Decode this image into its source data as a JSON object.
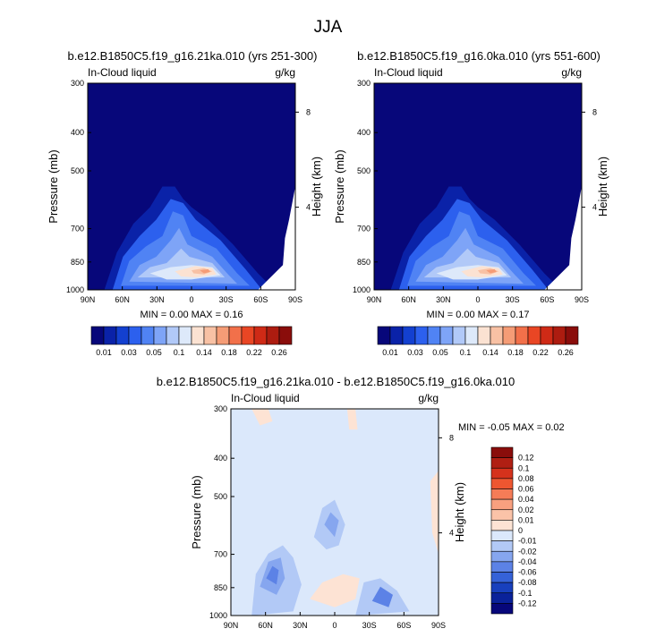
{
  "title": "JJA",
  "chart_data": [
    {
      "type": "heatmap",
      "title": "b.e12.B1850C5.f19_g16.21ka.010 (yrs 251-300)",
      "left_label": "In-Cloud liquid",
      "right_label": "g/kg",
      "ylabel": "Pressure (mb)",
      "ylabel_right": "Height (km)",
      "x_ticks": [
        "90N",
        "60N",
        "30N",
        "0",
        "30S",
        "60S",
        "90S"
      ],
      "y_ticks": [
        "300",
        "400",
        "500",
        "700",
        "850",
        "1000"
      ],
      "y_right_ticks": [
        "8",
        "4"
      ],
      "stats": {
        "min_label": "MIN =",
        "min": "0.00",
        "max_label": "MAX =",
        "max": "0.16"
      },
      "peak": {
        "lat": -18,
        "pressure": 860,
        "value": 0.16
      }
    },
    {
      "type": "heatmap",
      "title": "b.e12.B1850C5.f19_g16.0ka.010 (yrs 551-600)",
      "left_label": "In-Cloud liquid",
      "right_label": "g/kg",
      "ylabel": "Pressure (mb)",
      "ylabel_right": "Height (km)",
      "x_ticks": [
        "90N",
        "60N",
        "30N",
        "0",
        "30S",
        "60S",
        "90S"
      ],
      "y_ticks": [
        "300",
        "400",
        "500",
        "700",
        "850",
        "1000"
      ],
      "y_right_ticks": [
        "8",
        "4"
      ],
      "stats": {
        "min_label": "MIN =",
        "min": "0.00",
        "max_label": "MAX =",
        "max": "0.17"
      },
      "peak": {
        "lat": -18,
        "pressure": 855,
        "value": 0.17
      }
    },
    {
      "type": "heatmap",
      "title": "b.e12.B1850C5.f19_g16.21ka.010 - b.e12.B1850C5.f19_g16.0ka.010",
      "left_label": "In-Cloud liquid",
      "right_label": "g/kg",
      "ylabel": "Pressure (mb)",
      "ylabel_right": "Height (km)",
      "x_ticks": [
        "90N",
        "60N",
        "30N",
        "0",
        "30S",
        "60S",
        "90S"
      ],
      "y_ticks": [
        "300",
        "400",
        "500",
        "700",
        "850",
        "1000"
      ],
      "y_right_ticks": [
        "8",
        "4"
      ],
      "stats": {
        "min_label": "MIN =",
        "min": "-0.05",
        "max_label": "MAX =",
        "max": "0.02"
      }
    }
  ],
  "colorbar_top": {
    "labels": [
      "0.01",
      "0.03",
      "0.05",
      "0.1",
      "0.14",
      "0.18",
      "0.22",
      "0.26"
    ],
    "colors": [
      "#07077a",
      "#0a22a8",
      "#1340d0",
      "#2c60ee",
      "#5083f4",
      "#7ea4f7",
      "#b1c9f8",
      "#dde9fa",
      "#fbe2d2",
      "#f8c1a4",
      "#f59c76",
      "#f2704a",
      "#e94624",
      "#cf2a16",
      "#ad1c10",
      "#8a0d0b"
    ]
  },
  "colorbar_diff": {
    "labels": [
      "0.12",
      "0.1",
      "0.08",
      "0.06",
      "0.04",
      "0.02",
      "0.01",
      "0",
      "-0.01",
      "-0.02",
      "-0.04",
      "-0.06",
      "-0.08",
      "-0.1",
      "-0.12"
    ],
    "colors": [
      "#8a0d0b",
      "#b01f13",
      "#d5321c",
      "#ee5630",
      "#f57c57",
      "#f8a07f",
      "#fbc3a8",
      "#fde3d4",
      "#dbe8fb",
      "#b2c9f6",
      "#86a6ef",
      "#5c82e6",
      "#3562d8",
      "#1840bd",
      "#0a229a",
      "#07077a"
    ]
  }
}
